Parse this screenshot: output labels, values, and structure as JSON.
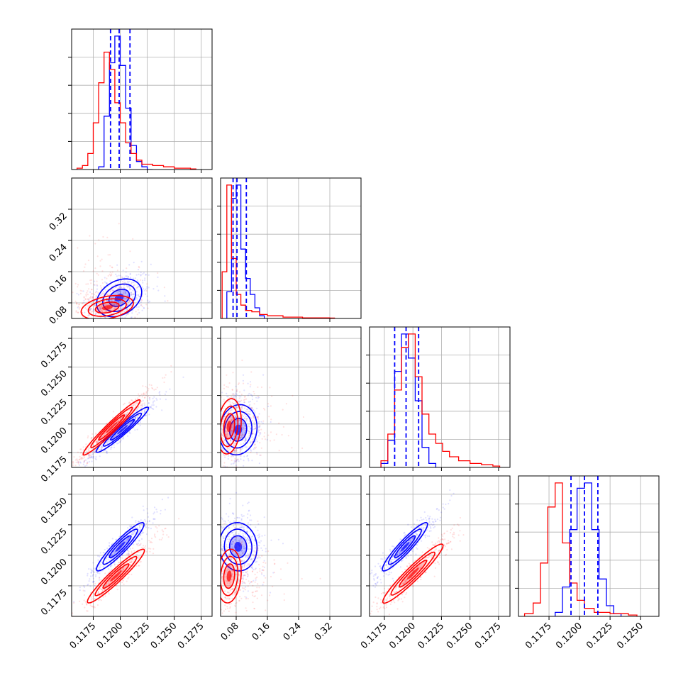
{
  "chart_data": {
    "type": "corner",
    "series": [
      {
        "name": "",
        "color": "#0000ff"
      },
      {
        "name": "",
        "color": "#ff0000"
      }
    ],
    "grid": true,
    "parameters": [
      {
        "index": 0,
        "lim": [
          0.1155,
          0.1285
        ],
        "ticks": [
          "0.1175",
          "0.1200",
          "0.1225",
          "0.1250",
          "0.1275"
        ],
        "tick_values": [
          0.1175,
          0.12,
          0.1225,
          0.125,
          0.1275
        ]
      },
      {
        "index": 1,
        "lim": [
          0.04,
          0.4
        ],
        "ticks": [
          "0.08",
          "0.16",
          "0.24",
          "0.32"
        ],
        "tick_values": [
          0.08,
          0.16,
          0.24,
          0.32
        ]
      },
      {
        "index": 2,
        "lim": [
          0.1162,
          0.1285
        ],
        "ticks": [
          "0.1175",
          "0.1200",
          "0.1225",
          "0.1250",
          "0.1275"
        ],
        "tick_values": [
          0.1175,
          0.12,
          0.1225,
          0.125,
          0.1275
        ]
      },
      {
        "index": 3,
        "lim": [
          0.115,
          0.1265
        ],
        "ticks": [
          "0.1175",
          "0.1200",
          "0.1225",
          "0.1250"
        ],
        "tick_values": [
          0.1175,
          0.12,
          0.1225,
          0.125
        ]
      }
    ],
    "quantile_lines": [
      [
        0.1191,
        0.1199,
        0.1209
      ],
      [
        0.072,
        0.082,
        0.106
      ],
      [
        0.1184,
        0.1194,
        0.1205
      ],
      [
        0.1193,
        0.1204,
        0.1215
      ]
    ],
    "histograms": [
      {
        "param": 0,
        "blue": [
          [
            0.118,
            0.02
          ],
          [
            0.1185,
            0.4
          ],
          [
            0.119,
            0.8
          ],
          [
            0.1195,
            1.0
          ],
          [
            0.12,
            0.78
          ],
          [
            0.1205,
            0.46
          ],
          [
            0.121,
            0.18
          ],
          [
            0.1215,
            0.06
          ],
          [
            0.122,
            0.02
          ],
          [
            0.1225,
            0.0
          ]
        ],
        "red": [
          [
            0.116,
            0.01
          ],
          [
            0.1165,
            0.03
          ],
          [
            0.117,
            0.12
          ],
          [
            0.1175,
            0.35
          ],
          [
            0.118,
            0.65
          ],
          [
            0.1185,
            0.88
          ],
          [
            0.119,
            0.75
          ],
          [
            0.1195,
            0.5
          ],
          [
            0.12,
            0.35
          ],
          [
            0.1205,
            0.2
          ],
          [
            0.121,
            0.12
          ],
          [
            0.1215,
            0.07
          ],
          [
            0.122,
            0.04
          ],
          [
            0.123,
            0.03
          ],
          [
            0.124,
            0.02
          ],
          [
            0.125,
            0.01
          ],
          [
            0.1265,
            0.005
          ]
        ]
      },
      {
        "param": 1,
        "blue": [
          [
            0.056,
            0.2
          ],
          [
            0.068,
            0.9
          ],
          [
            0.08,
            1.0
          ],
          [
            0.092,
            0.52
          ],
          [
            0.104,
            0.3
          ],
          [
            0.116,
            0.18
          ],
          [
            0.128,
            0.08
          ],
          [
            0.14,
            0.02
          ]
        ],
        "red": [
          [
            0.044,
            0.35
          ],
          [
            0.056,
            1.0
          ],
          [
            0.068,
            0.45
          ],
          [
            0.08,
            0.18
          ],
          [
            0.092,
            0.1
          ],
          [
            0.104,
            0.06
          ],
          [
            0.12,
            0.05
          ],
          [
            0.14,
            0.03
          ],
          [
            0.16,
            0.02
          ],
          [
            0.2,
            0.01
          ],
          [
            0.25,
            0.005
          ],
          [
            0.32,
            0.003
          ]
        ]
      },
      {
        "param": 2,
        "blue": [
          [
            0.1172,
            0.03
          ],
          [
            0.1178,
            0.2
          ],
          [
            0.1184,
            0.72
          ],
          [
            0.119,
            1.0
          ],
          [
            0.1196,
            0.82
          ],
          [
            0.1202,
            0.5
          ],
          [
            0.1208,
            0.15
          ],
          [
            0.1214,
            0.03
          ]
        ],
        "red": [
          [
            0.1172,
            0.05
          ],
          [
            0.1178,
            0.25
          ],
          [
            0.1184,
            0.58
          ],
          [
            0.119,
            0.9
          ],
          [
            0.1196,
            1.0
          ],
          [
            0.1202,
            0.68
          ],
          [
            0.1208,
            0.4
          ],
          [
            0.1214,
            0.25
          ],
          [
            0.122,
            0.18
          ],
          [
            0.1226,
            0.12
          ],
          [
            0.1232,
            0.08
          ],
          [
            0.124,
            0.05
          ],
          [
            0.125,
            0.03
          ],
          [
            0.126,
            0.02
          ],
          [
            0.127,
            0.01
          ]
        ]
      },
      {
        "param": 3,
        "blue": [
          [
            0.118,
            0.03
          ],
          [
            0.1186,
            0.22
          ],
          [
            0.1192,
            0.65
          ],
          [
            0.1198,
            0.96
          ],
          [
            0.1204,
            1.0
          ],
          [
            0.121,
            0.65
          ],
          [
            0.1216,
            0.28
          ],
          [
            0.1222,
            0.08
          ],
          [
            0.1228,
            0.02
          ]
        ],
        "red": [
          [
            0.1155,
            0.02
          ],
          [
            0.1162,
            0.1
          ],
          [
            0.1168,
            0.4
          ],
          [
            0.1174,
            0.82
          ],
          [
            0.118,
            1.0
          ],
          [
            0.1186,
            0.55
          ],
          [
            0.1192,
            0.25
          ],
          [
            0.1198,
            0.12
          ],
          [
            0.1204,
            0.06
          ],
          [
            0.1212,
            0.03
          ],
          [
            0.1225,
            0.02
          ],
          [
            0.124,
            0.01
          ]
        ]
      }
    ],
    "joint_2d": [
      {
        "x": 0,
        "y": 1,
        "blue": {
          "cx": 0.1199,
          "cy": 0.093,
          "sx": 0.00095,
          "sy": 0.022,
          "rho": 0.3
        },
        "red": {
          "cx": 0.1188,
          "cy": 0.068,
          "sx": 0.0011,
          "sy": 0.014,
          "rho": 0.35,
          "scatter_sy": 0.07
        }
      },
      {
        "x": 0,
        "y": 2,
        "blue": {
          "cx": 0.1202,
          "cy": 0.1195,
          "sx": 0.0011,
          "sy": 0.0009,
          "rho": 0.96
        },
        "red": {
          "cx": 0.1192,
          "cy": 0.1197,
          "sx": 0.0012,
          "sy": 0.0011,
          "rho": 0.97
        }
      },
      {
        "x": 0,
        "y": 3,
        "blue": {
          "cx": 0.12,
          "cy": 0.1207,
          "sx": 0.001,
          "sy": 0.0009,
          "rho": 0.93
        },
        "red": {
          "cx": 0.1196,
          "cy": 0.1183,
          "sx": 0.0012,
          "sy": 0.001,
          "rho": 0.95
        }
      },
      {
        "x": 1,
        "y": 2,
        "blue": {
          "cx": 0.085,
          "cy": 0.1195,
          "sx": 0.022,
          "sy": 0.001,
          "rho": 0.1
        },
        "red": {
          "cx": 0.062,
          "cy": 0.1198,
          "sx": 0.014,
          "sy": 0.0011,
          "rho": 0.2,
          "scatter_sx": 0.07
        }
      },
      {
        "x": 1,
        "y": 3,
        "blue": {
          "cx": 0.085,
          "cy": 0.1207,
          "sx": 0.022,
          "sy": 0.0009,
          "rho": -0.05
        },
        "red": {
          "cx": 0.062,
          "cy": 0.1183,
          "sx": 0.014,
          "sy": 0.001,
          "rho": 0.15,
          "scatter_sx": 0.07
        }
      },
      {
        "x": 2,
        "y": 3,
        "blue": {
          "cx": 0.1193,
          "cy": 0.1207,
          "sx": 0.0009,
          "sy": 0.0009,
          "rho": 0.93
        },
        "red": {
          "cx": 0.12,
          "cy": 0.1185,
          "sx": 0.0012,
          "sy": 0.0011,
          "rho": 0.95
        }
      }
    ]
  }
}
